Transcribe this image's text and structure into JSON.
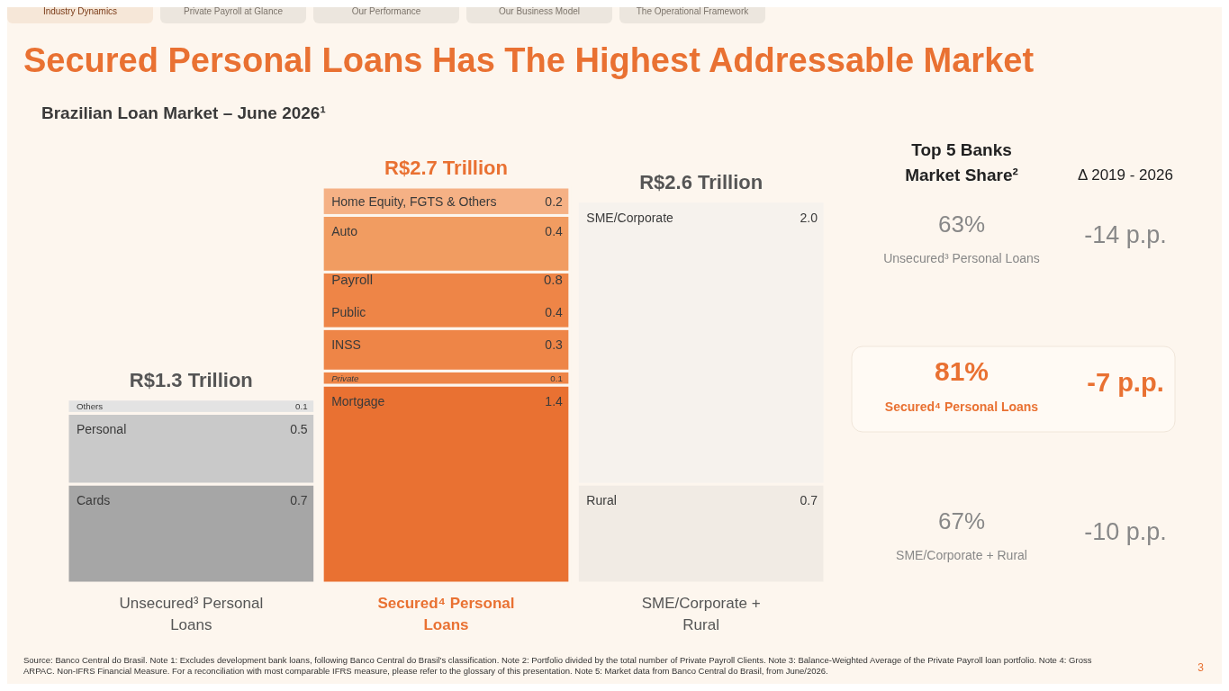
{
  "chart_data": [
    {
      "type": "bar",
      "stacked": true,
      "title": "Secured Personal Loans Has The Highest Addressable Market",
      "subtitle": "Brazilian Loan Market – June 2026¹",
      "categories": [
        "Unsecured³ Personal Loans",
        "Secured⁴ Personal Loans",
        "SME/Corporate + Rural"
      ],
      "series": [
        {
          "name": "Cards",
          "color": "#a6a6a6",
          "values": [
            0.7,
            null,
            null
          ],
          "value_labels": [
            "0.7",
            null,
            null
          ]
        },
        {
          "name": "Personal",
          "color": "#c9c9c9",
          "values": [
            0.5,
            null,
            null
          ],
          "value_labels": [
            "0.5",
            null,
            null
          ]
        },
        {
          "name": "Others",
          "color": "#e3e3e3",
          "values": [
            0.1,
            null,
            null
          ],
          "value_labels": [
            "0.1",
            null,
            null
          ]
        },
        {
          "name": "Mortgage",
          "color": "#e97132",
          "values": [
            null,
            1.4,
            null
          ],
          "value_labels": [
            null,
            "1.4",
            null
          ]
        },
        {
          "name": "Private",
          "color": "#ee8547",
          "values": [
            null,
            0.1,
            null
          ],
          "value_labels": [
            null,
            "0.1",
            null
          ]
        },
        {
          "name": "INSS",
          "color": "#ee8547",
          "values": [
            null,
            0.3,
            null
          ],
          "value_labels": [
            null,
            "0.3",
            null
          ]
        },
        {
          "name": "Public",
          "color": "#ee8547",
          "values": [
            null,
            0.4,
            null
          ],
          "value_labels": [
            null,
            "0.4",
            null
          ]
        },
        {
          "name": "Auto",
          "color": "#f19c61",
          "values": [
            null,
            0.4,
            null
          ],
          "value_labels": [
            null,
            "0.4",
            null
          ]
        },
        {
          "name": "Home Equity, FGTS & Others",
          "color": "#f5b185",
          "values": [
            null,
            0.2,
            null
          ],
          "value_labels": [
            null,
            "0.2",
            null
          ]
        },
        {
          "name": "Rural",
          "color": "#f1ebe4",
          "values": [
            null,
            null,
            0.7
          ],
          "value_labels": [
            null,
            null,
            "0.7"
          ]
        },
        {
          "name": "SME/Corporate",
          "color": "#f6f2ed",
          "values": [
            null,
            null,
            2.0
          ],
          "value_labels": [
            null,
            null,
            "2.0"
          ]
        }
      ],
      "totals": [
        "R$1.3 Trillion",
        "R$2.7 Trillion",
        "R$2.6 Trillion"
      ],
      "annotations": [
        "Payroll",
        "0.8",
        "Industry Dynamics",
        "Private Payroll at Glance",
        "Our Performance",
        "Our Business Model",
        "The Operational Framework",
        "Source: Banco Central do Brasil. Note 1: Excludes development bank loans, following Banco Central do Brasil's classification. Note 2: Portfolio divided by the total number of Private Payroll Clients. Note 3: Balance-Weighted Average of the Private Payroll loan portfolio. Note 4: Gross ARPAC. Non-IFRS Financial Measure. For a reconciliation with most comparable IFRS measure, please refer to the glossary of this presentation. Note 5: Market data from Banco Central do Brasil, from June/2026.",
        "3"
      ]
    },
    {
      "type": "other",
      "title": "Top 5 Banks Market Share²",
      "annotations": [
        "Δ 2019 - 2026",
        "63%",
        "Unsecured³ Personal Loans",
        "-14 p.p.",
        "81%",
        "Secured⁴ Personal Loans",
        "-7 p.p.",
        "67%",
        "SME/Corporate + Rural",
        "-10 p.p."
      ]
    }
  ]
}
